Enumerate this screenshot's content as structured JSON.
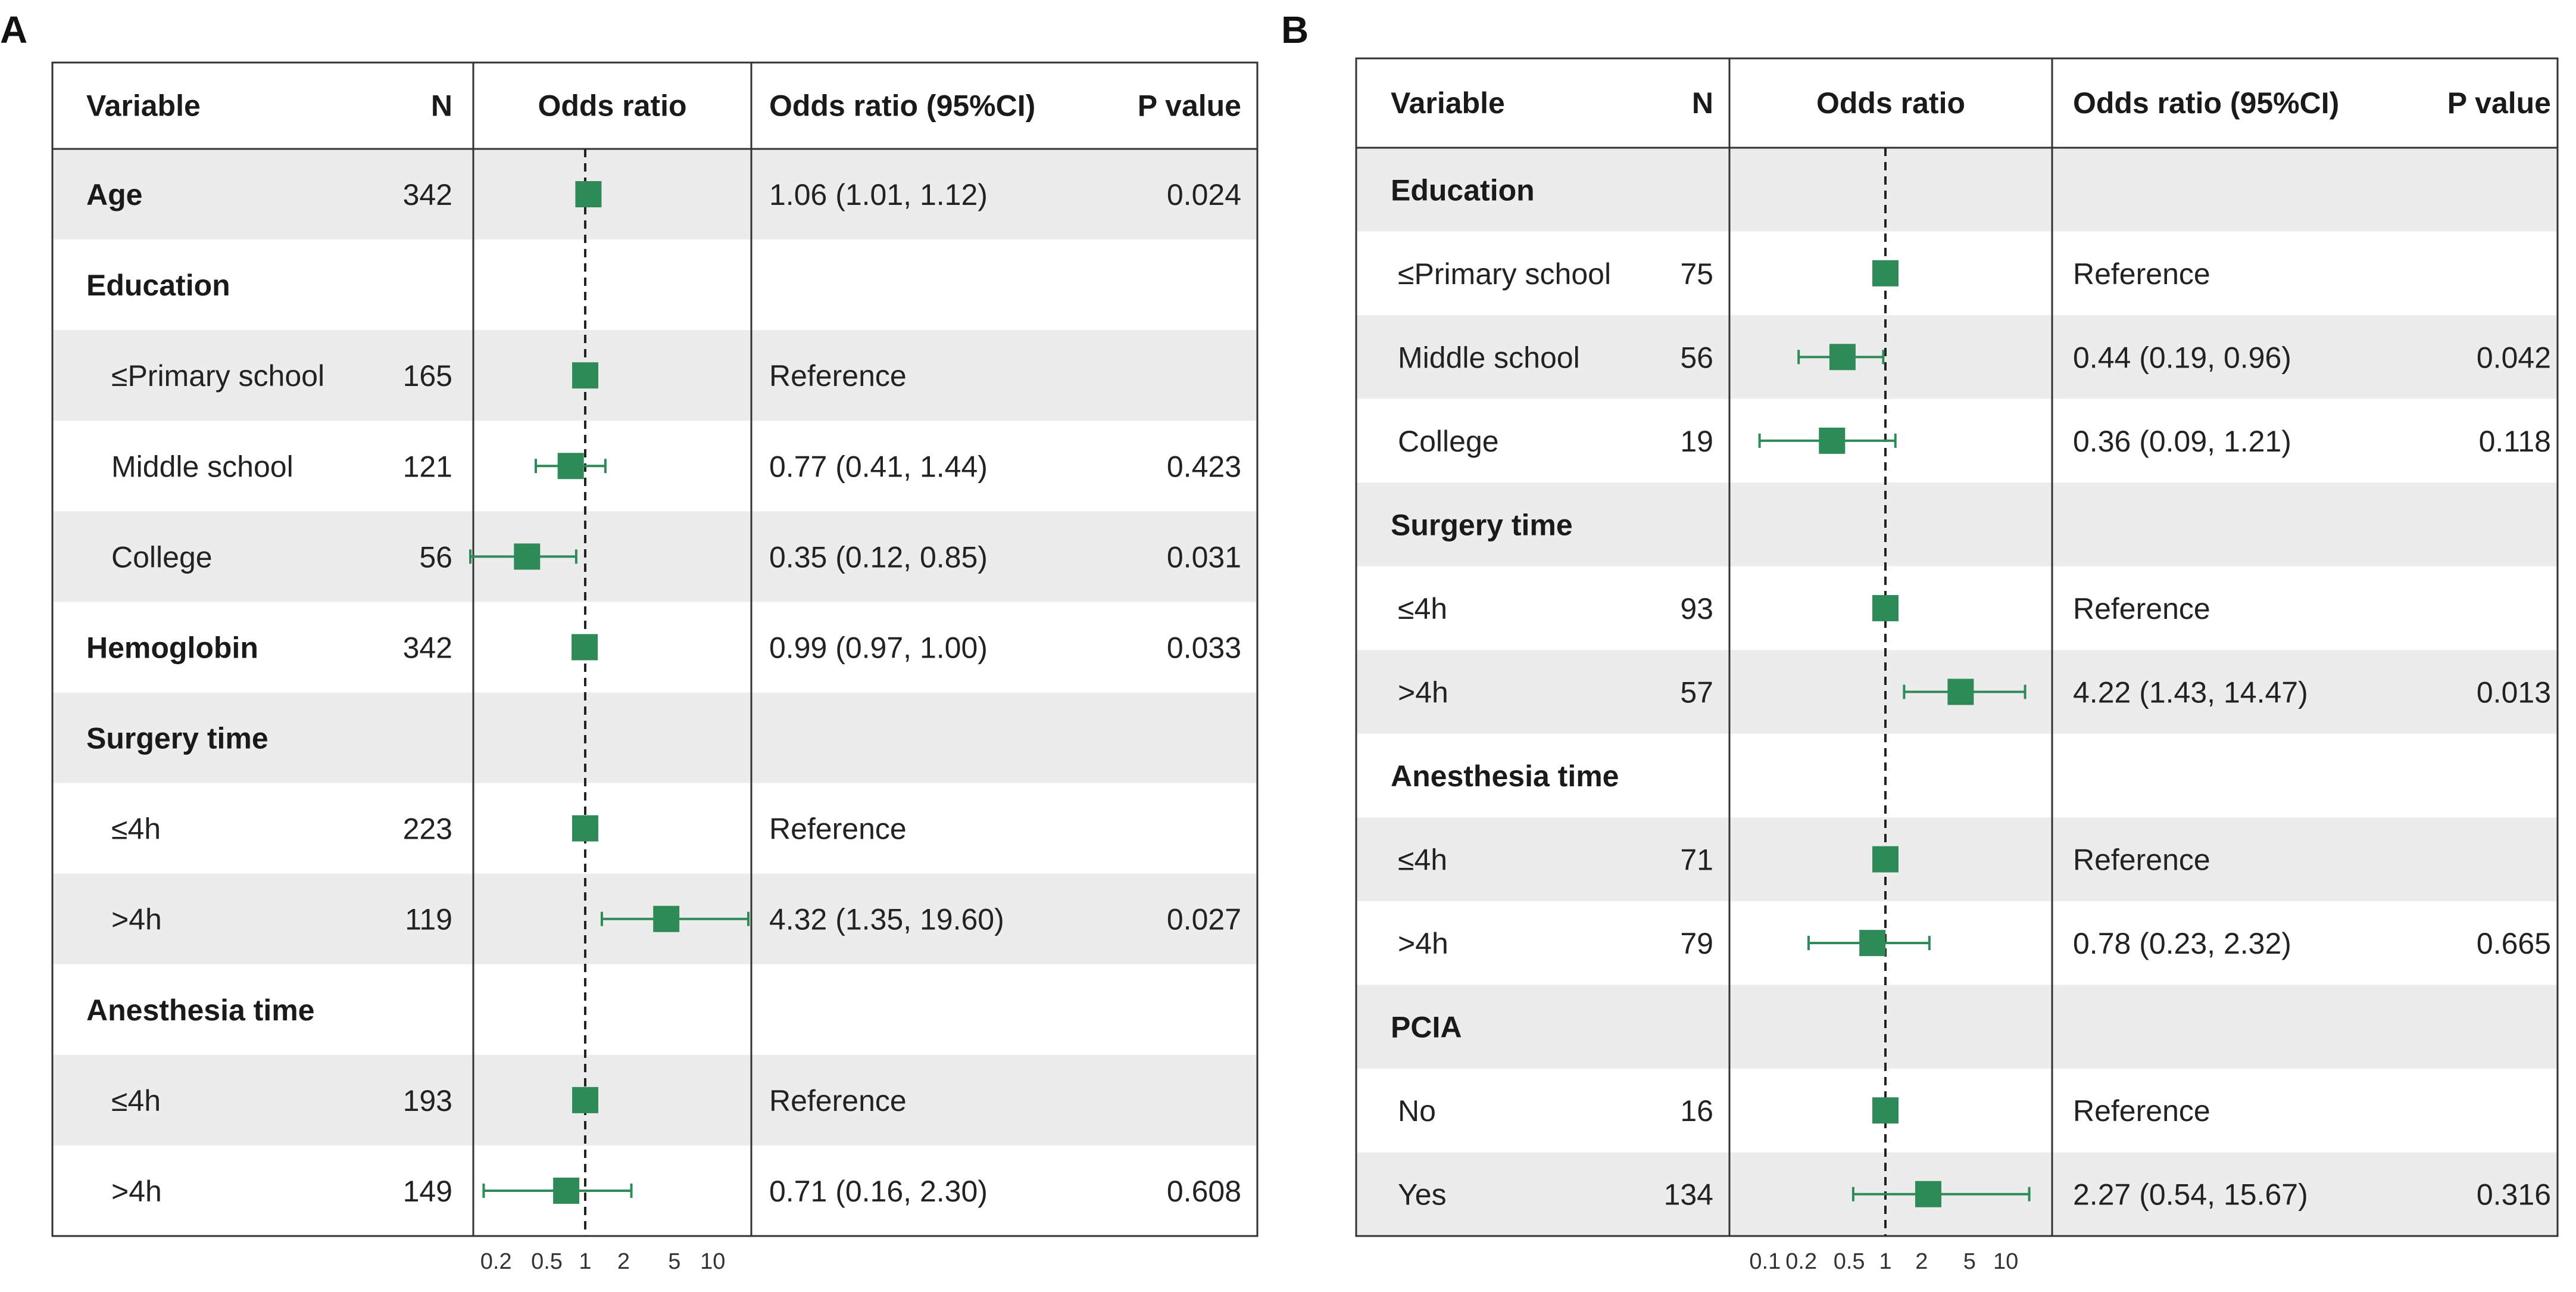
{
  "colors": {
    "marker": "#2e8b57",
    "band": "#ececec",
    "border": "#333333",
    "ref_line": "#222222"
  },
  "chart_data": [
    {
      "type": "forest",
      "panel": "A",
      "headers": {
        "variable": "Variable",
        "n": "N",
        "plot": "Odds ratio",
        "ci": "Odds ratio (95%CI)",
        "p": "P value"
      },
      "x_scale": "log",
      "xlim": [
        0.14,
        18
      ],
      "ref_value": 1,
      "ticks": [
        0.2,
        0.5,
        1,
        2,
        5,
        10
      ],
      "tick_labels": [
        "0.2",
        "0.5",
        "1",
        "2",
        "5",
        "10"
      ],
      "rows": [
        {
          "label": "Age",
          "bold": true,
          "indent": false,
          "n": "342",
          "or": 1.06,
          "lo": 1.01,
          "hi": 1.12,
          "ci_text": "1.06 (1.01, 1.12)",
          "p": "0.024"
        },
        {
          "label": "Education",
          "bold": true,
          "indent": false,
          "n": "",
          "or": null,
          "lo": null,
          "hi": null,
          "ci_text": "",
          "p": ""
        },
        {
          "label": "≤Primary school",
          "bold": false,
          "indent": true,
          "n": "165",
          "or": 1,
          "lo": null,
          "hi": null,
          "ci_text": "Reference",
          "p": ""
        },
        {
          "label": "Middle school",
          "bold": false,
          "indent": true,
          "n": "121",
          "or": 0.77,
          "lo": 0.41,
          "hi": 1.44,
          "ci_text": "0.77 (0.41, 1.44)",
          "p": "0.423"
        },
        {
          "label": "College",
          "bold": false,
          "indent": true,
          "n": "56",
          "or": 0.35,
          "lo": 0.12,
          "hi": 0.85,
          "ci_text": "0.35 (0.12, 0.85)",
          "p": "0.031"
        },
        {
          "label": "Hemoglobin",
          "bold": true,
          "indent": false,
          "n": "342",
          "or": 0.99,
          "lo": 0.97,
          "hi": 1.0,
          "ci_text": "0.99 (0.97, 1.00)",
          "p": "0.033"
        },
        {
          "label": "Surgery time",
          "bold": true,
          "indent": false,
          "n": "",
          "or": null,
          "lo": null,
          "hi": null,
          "ci_text": "",
          "p": ""
        },
        {
          "label": "≤4h",
          "bold": false,
          "indent": true,
          "n": "223",
          "or": 1,
          "lo": null,
          "hi": null,
          "ci_text": "Reference",
          "p": ""
        },
        {
          "label": ">4h",
          "bold": false,
          "indent": true,
          "n": "119",
          "or": 4.32,
          "lo": 1.35,
          "hi": 19.6,
          "ci_text": "4.32 (1.35, 19.60)",
          "p": "0.027"
        },
        {
          "label": "Anesthesia time",
          "bold": true,
          "indent": false,
          "n": "",
          "or": null,
          "lo": null,
          "hi": null,
          "ci_text": "",
          "p": ""
        },
        {
          "label": "≤4h",
          "bold": false,
          "indent": true,
          "n": "193",
          "or": 1,
          "lo": null,
          "hi": null,
          "ci_text": "Reference",
          "p": ""
        },
        {
          "label": ">4h",
          "bold": false,
          "indent": true,
          "n": "149",
          "or": 0.71,
          "lo": 0.16,
          "hi": 2.3,
          "ci_text": "0.71 (0.16, 2.30)",
          "p": "0.608"
        }
      ]
    },
    {
      "type": "forest",
      "panel": "B",
      "headers": {
        "variable": "Variable",
        "n": "N",
        "plot": "Odds ratio",
        "ci": "Odds ratio (95%CI)",
        "p": "P value"
      },
      "x_scale": "log",
      "xlim": [
        0.06,
        20
      ],
      "ref_value": 1,
      "ticks": [
        0.1,
        0.2,
        0.5,
        1,
        2,
        5,
        10
      ],
      "tick_labels": [
        "0.1",
        "0.2",
        "0.5",
        "1",
        "2",
        "5",
        "10"
      ],
      "rows": [
        {
          "label": "Education",
          "bold": true,
          "indent": false,
          "n": "",
          "or": null,
          "lo": null,
          "hi": null,
          "ci_text": "",
          "p": ""
        },
        {
          "label": "≤Primary school",
          "bold": false,
          "indent": true,
          "n": "75",
          "or": 1,
          "lo": null,
          "hi": null,
          "ci_text": "Reference",
          "p": ""
        },
        {
          "label": "Middle school",
          "bold": false,
          "indent": true,
          "n": "56",
          "or": 0.44,
          "lo": 0.19,
          "hi": 0.96,
          "ci_text": "0.44 (0.19, 0.96)",
          "p": "0.042"
        },
        {
          "label": "College",
          "bold": false,
          "indent": true,
          "n": "19",
          "or": 0.36,
          "lo": 0.09,
          "hi": 1.21,
          "ci_text": "0.36 (0.09, 1.21)",
          "p": "0.118"
        },
        {
          "label": "Surgery time",
          "bold": true,
          "indent": false,
          "n": "",
          "or": null,
          "lo": null,
          "hi": null,
          "ci_text": "",
          "p": ""
        },
        {
          "label": "≤4h",
          "bold": false,
          "indent": true,
          "n": "93",
          "or": 1,
          "lo": null,
          "hi": null,
          "ci_text": "Reference",
          "p": ""
        },
        {
          "label": ">4h",
          "bold": false,
          "indent": true,
          "n": "57",
          "or": 4.22,
          "lo": 1.43,
          "hi": 14.47,
          "ci_text": "4.22 (1.43, 14.47)",
          "p": "0.013"
        },
        {
          "label": "Anesthesia time",
          "bold": true,
          "indent": false,
          "n": "",
          "or": null,
          "lo": null,
          "hi": null,
          "ci_text": "",
          "p": ""
        },
        {
          "label": "≤4h",
          "bold": false,
          "indent": true,
          "n": "71",
          "or": 1,
          "lo": null,
          "hi": null,
          "ci_text": "Reference",
          "p": ""
        },
        {
          "label": ">4h",
          "bold": false,
          "indent": true,
          "n": "79",
          "or": 0.78,
          "lo": 0.23,
          "hi": 2.32,
          "ci_text": "0.78 (0.23, 2.32)",
          "p": "0.665"
        },
        {
          "label": "PCIA",
          "bold": true,
          "indent": false,
          "n": "",
          "or": null,
          "lo": null,
          "hi": null,
          "ci_text": "",
          "p": ""
        },
        {
          "label": "No",
          "bold": false,
          "indent": true,
          "n": "16",
          "or": 1,
          "lo": null,
          "hi": null,
          "ci_text": "Reference",
          "p": ""
        },
        {
          "label": "Yes",
          "bold": false,
          "indent": true,
          "n": "134",
          "or": 2.27,
          "lo": 0.54,
          "hi": 15.67,
          "ci_text": "2.27 (0.54, 15.67)",
          "p": "0.316"
        }
      ]
    }
  ]
}
